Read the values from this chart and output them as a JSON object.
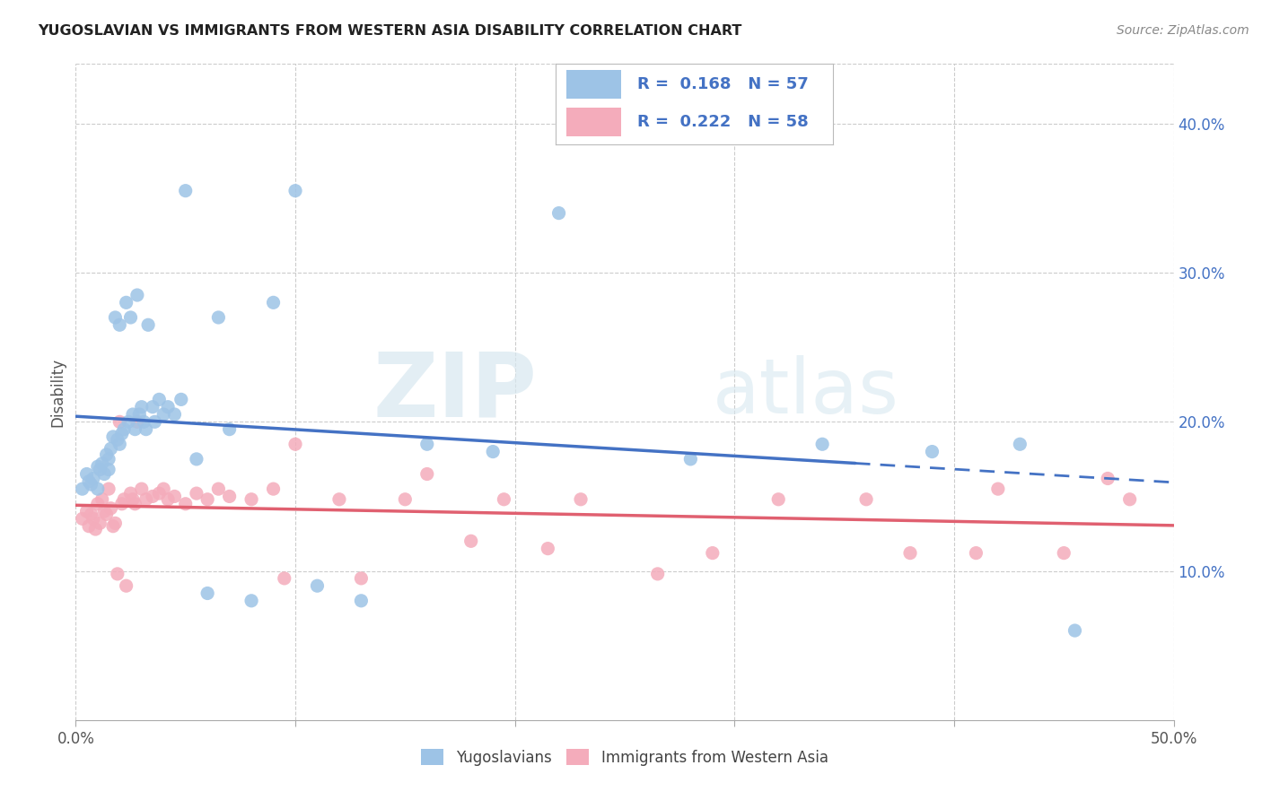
{
  "title": "YUGOSLAVIAN VS IMMIGRANTS FROM WESTERN ASIA DISABILITY CORRELATION CHART",
  "source": "Source: ZipAtlas.com",
  "ylabel": "Disability",
  "xlim": [
    0.0,
    0.5
  ],
  "ylim": [
    0.0,
    0.44
  ],
  "y_ticks": [
    0.1,
    0.2,
    0.3,
    0.4
  ],
  "y_tick_labels": [
    "10.0%",
    "20.0%",
    "30.0%",
    "40.0%"
  ],
  "legend_r1": "0.168",
  "legend_n1": "57",
  "legend_r2": "0.222",
  "legend_n2": "58",
  "legend_label1": "Yugoslavians",
  "legend_label2": "Immigrants from Western Asia",
  "color_blue": "#9DC3E6",
  "color_pink": "#F4ACBB",
  "color_blue_line": "#4472C4",
  "color_pink_line": "#E06070",
  "color_text_blue": "#4472C4",
  "watermark_zip": "ZIP",
  "watermark_atlas": "atlas",
  "blue_x": [
    0.003,
    0.005,
    0.006,
    0.007,
    0.008,
    0.01,
    0.01,
    0.011,
    0.012,
    0.013,
    0.014,
    0.015,
    0.015,
    0.016,
    0.017,
    0.018,
    0.019,
    0.02,
    0.02,
    0.021,
    0.022,
    0.023,
    0.024,
    0.025,
    0.026,
    0.027,
    0.028,
    0.029,
    0.03,
    0.031,
    0.032,
    0.033,
    0.035,
    0.036,
    0.038,
    0.04,
    0.042,
    0.045,
    0.048,
    0.05,
    0.055,
    0.06,
    0.065,
    0.07,
    0.08,
    0.09,
    0.1,
    0.11,
    0.13,
    0.16,
    0.19,
    0.22,
    0.28,
    0.34,
    0.39,
    0.43,
    0.455
  ],
  "blue_y": [
    0.155,
    0.165,
    0.16,
    0.158,
    0.162,
    0.17,
    0.155,
    0.168,
    0.172,
    0.165,
    0.178,
    0.175,
    0.168,
    0.182,
    0.19,
    0.27,
    0.188,
    0.185,
    0.265,
    0.192,
    0.195,
    0.28,
    0.2,
    0.27,
    0.205,
    0.195,
    0.285,
    0.205,
    0.21,
    0.2,
    0.195,
    0.265,
    0.21,
    0.2,
    0.215,
    0.205,
    0.21,
    0.205,
    0.215,
    0.355,
    0.175,
    0.085,
    0.27,
    0.195,
    0.08,
    0.28,
    0.355,
    0.09,
    0.08,
    0.185,
    0.18,
    0.34,
    0.175,
    0.185,
    0.18,
    0.185,
    0.06
  ],
  "pink_x": [
    0.003,
    0.005,
    0.006,
    0.007,
    0.008,
    0.009,
    0.01,
    0.011,
    0.012,
    0.013,
    0.014,
    0.015,
    0.016,
    0.017,
    0.018,
    0.019,
    0.02,
    0.021,
    0.022,
    0.023,
    0.025,
    0.026,
    0.027,
    0.028,
    0.03,
    0.032,
    0.035,
    0.038,
    0.04,
    0.042,
    0.045,
    0.05,
    0.055,
    0.06,
    0.065,
    0.07,
    0.08,
    0.09,
    0.095,
    0.1,
    0.12,
    0.13,
    0.15,
    0.16,
    0.18,
    0.195,
    0.215,
    0.23,
    0.265,
    0.29,
    0.32,
    0.36,
    0.38,
    0.41,
    0.42,
    0.45,
    0.47,
    0.48
  ],
  "pink_y": [
    0.135,
    0.14,
    0.13,
    0.138,
    0.135,
    0.128,
    0.145,
    0.132,
    0.148,
    0.14,
    0.138,
    0.155,
    0.142,
    0.13,
    0.132,
    0.098,
    0.2,
    0.145,
    0.148,
    0.09,
    0.152,
    0.148,
    0.145,
    0.2,
    0.155,
    0.148,
    0.15,
    0.152,
    0.155,
    0.148,
    0.15,
    0.145,
    0.152,
    0.148,
    0.155,
    0.15,
    0.148,
    0.155,
    0.095,
    0.185,
    0.148,
    0.095,
    0.148,
    0.165,
    0.12,
    0.148,
    0.115,
    0.148,
    0.098,
    0.112,
    0.148,
    0.148,
    0.112,
    0.112,
    0.155,
    0.112,
    0.162,
    0.148
  ]
}
